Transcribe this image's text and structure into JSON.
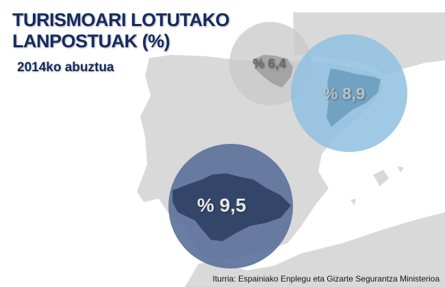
{
  "title_line1": "TURISMOARI LOTUTAKO",
  "title_line2": "LANPOSTUAK (%)",
  "subtitle": "2014ko abuztua",
  "source": "Iturria: Espainiako Enplegu eta Gizarte Segurantza Ministerioa",
  "regions": [
    {
      "label": "% 6,4",
      "value": 6.4,
      "color": "#c8c8ca",
      "text_color": "#6b6b6b"
    },
    {
      "label": "% 8,9",
      "value": 8.9,
      "color": "#8fc0e0",
      "text_color": "#b9c3cc"
    },
    {
      "label": "% 9,5",
      "value": 9.5,
      "color": "#5a6f98",
      "text_color": "#e6e6e6"
    }
  ],
  "colors": {
    "land": "#d9d9d9",
    "title": "#142a63"
  }
}
